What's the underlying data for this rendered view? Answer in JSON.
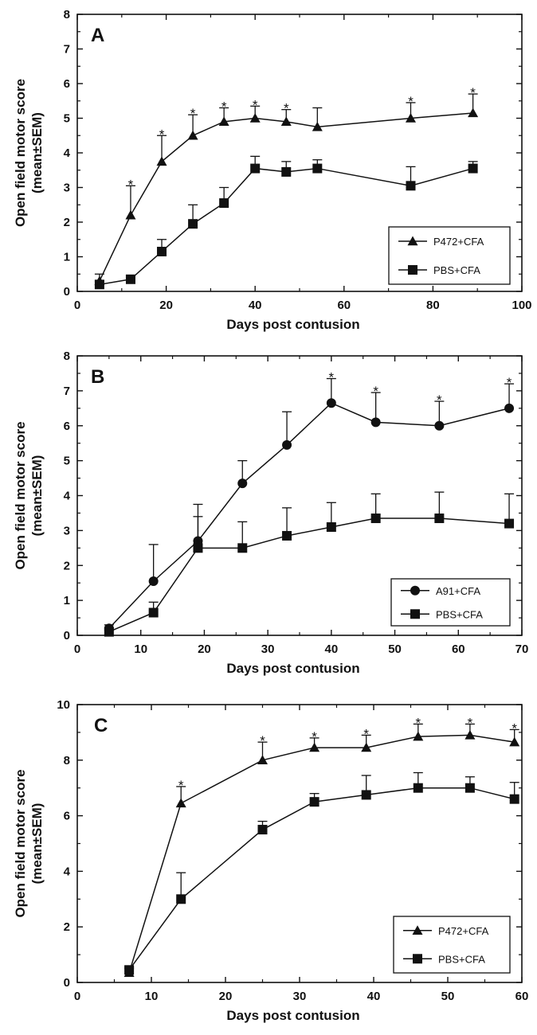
{
  "chart_data": [
    {
      "type": "line",
      "panel": "A",
      "xlabel": "Days post contusion",
      "ylabel_line1": "Open field motor score",
      "ylabel_line2": "(mean±SEM)",
      "xlim": [
        0,
        100
      ],
      "ylim": [
        0,
        8
      ],
      "xticks": [
        "0",
        "20",
        "40",
        "60",
        "80",
        "100"
      ],
      "yticks": [
        "0",
        "1",
        "2",
        "3",
        "4",
        "5",
        "6",
        "7",
        "8"
      ],
      "legend_position": "bottom-right",
      "series": [
        {
          "name": "P472+CFA",
          "marker": "triangle",
          "x": [
            5,
            12,
            19,
            26,
            33,
            40,
            47,
            54,
            75,
            89
          ],
          "y": [
            0.3,
            2.2,
            3.75,
            4.5,
            4.9,
            5.0,
            4.9,
            4.75,
            5.0,
            5.15
          ],
          "err": [
            0.2,
            0.85,
            0.75,
            0.6,
            0.4,
            0.35,
            0.35,
            0.55,
            0.45,
            0.55
          ],
          "sig": [
            false,
            true,
            true,
            true,
            true,
            true,
            true,
            false,
            true,
            true
          ]
        },
        {
          "name": "PBS+CFA",
          "marker": "square",
          "x": [
            5,
            12,
            19,
            26,
            33,
            40,
            47,
            54,
            75,
            89
          ],
          "y": [
            0.2,
            0.35,
            1.15,
            1.95,
            2.55,
            3.55,
            3.45,
            3.55,
            3.05,
            3.55
          ],
          "err": [
            0.1,
            0.1,
            0.35,
            0.55,
            0.45,
            0.35,
            0.3,
            0.25,
            0.55,
            0.2
          ],
          "sig": [
            false,
            false,
            false,
            false,
            false,
            false,
            false,
            false,
            false,
            false
          ]
        }
      ]
    },
    {
      "type": "line",
      "panel": "B",
      "xlabel": "Days post contusion",
      "ylabel_line1": "Open field motor score",
      "ylabel_line2": "(mean±SEM)",
      "xlim": [
        0,
        70
      ],
      "ylim": [
        0,
        8
      ],
      "xticks": [
        "0",
        "10",
        "20",
        "30",
        "40",
        "50",
        "60",
        "70"
      ],
      "yticks": [
        "0",
        "1",
        "2",
        "3",
        "4",
        "5",
        "6",
        "7",
        "8"
      ],
      "legend_position": "bottom-right",
      "series": [
        {
          "name": "A91+CFA",
          "marker": "circle",
          "x": [
            5,
            12,
            19,
            26,
            33,
            40,
            47,
            57,
            68
          ],
          "y": [
            0.2,
            1.55,
            2.7,
            4.35,
            5.45,
            6.65,
            6.1,
            6.0,
            6.5
          ],
          "err": [
            0.1,
            1.05,
            1.05,
            0.65,
            0.95,
            0.7,
            0.85,
            0.7,
            0.7
          ],
          "sig": [
            false,
            false,
            false,
            false,
            false,
            true,
            true,
            true,
            true
          ]
        },
        {
          "name": "PBS+CFA",
          "marker": "square",
          "x": [
            5,
            12,
            19,
            26,
            33,
            40,
            47,
            57,
            68
          ],
          "y": [
            0.1,
            0.65,
            2.5,
            2.5,
            2.85,
            3.1,
            3.35,
            3.35,
            3.2
          ],
          "err": [
            0.05,
            0.3,
            0.9,
            0.75,
            0.8,
            0.7,
            0.7,
            0.75,
            0.85
          ],
          "sig": [
            false,
            false,
            false,
            false,
            false,
            false,
            false,
            false,
            false
          ]
        }
      ]
    },
    {
      "type": "line",
      "panel": "C",
      "xlabel": "Days post contusion",
      "ylabel_line1": "Open field motor score",
      "ylabel_line2": "(mean±SEM)",
      "xlim": [
        0,
        60
      ],
      "ylim": [
        0,
        10
      ],
      "xticks": [
        "0",
        "10",
        "20",
        "30",
        "40",
        "50",
        "60"
      ],
      "yticks": [
        "0",
        "2",
        "4",
        "6",
        "8",
        "10"
      ],
      "legend_position": "bottom-right",
      "series": [
        {
          "name": "P472+CFA",
          "marker": "triangle",
          "x": [
            7,
            14,
            25,
            32,
            39,
            46,
            53,
            59
          ],
          "y": [
            0.35,
            6.45,
            8.0,
            8.45,
            8.45,
            8.85,
            8.9,
            8.65
          ],
          "err": [
            0.15,
            0.6,
            0.65,
            0.35,
            0.45,
            0.45,
            0.4,
            0.45
          ],
          "sig": [
            false,
            true,
            true,
            true,
            true,
            true,
            true,
            true
          ]
        },
        {
          "name": "PBS+CFA",
          "marker": "square",
          "x": [
            7,
            14,
            25,
            32,
            39,
            46,
            53,
            59
          ],
          "y": [
            0.45,
            3.0,
            5.5,
            6.5,
            6.75,
            7.0,
            7.0,
            6.6
          ],
          "err": [
            0.1,
            0.95,
            0.3,
            0.3,
            0.7,
            0.55,
            0.4,
            0.6
          ],
          "sig": [
            false,
            false,
            false,
            false,
            false,
            false,
            false,
            false
          ]
        }
      ]
    }
  ]
}
